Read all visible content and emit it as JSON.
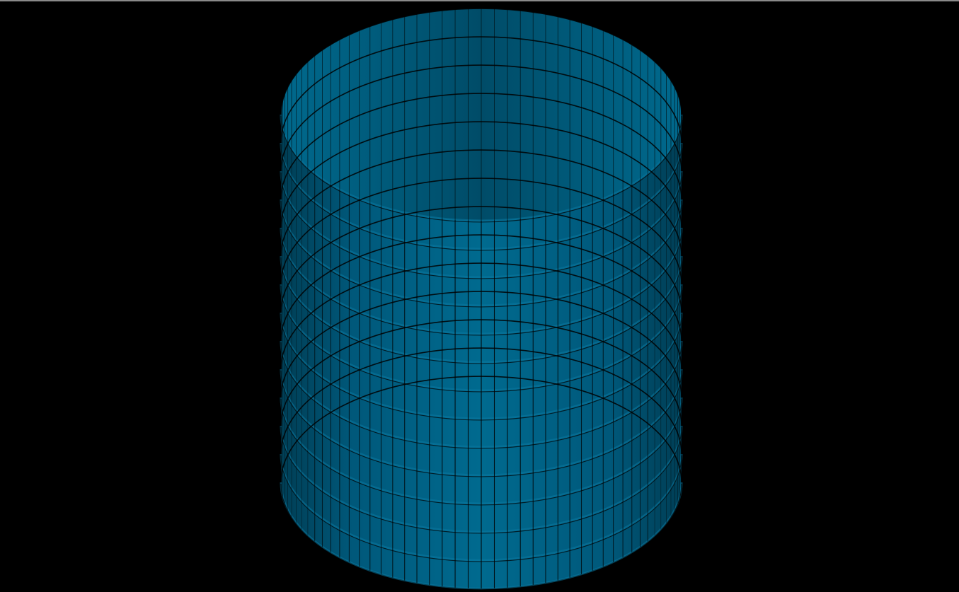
{
  "viewport": {
    "background": "#000000",
    "top_border_color": "#8a8a8a"
  },
  "model": {
    "shape": "cylindrical-shell",
    "ring_count": 14,
    "segments_per_ring": 96,
    "fill_color": "#005f80",
    "edge_color": "#000000",
    "highlight_color": "#0a78a0",
    "shade_color": "#003e55"
  }
}
